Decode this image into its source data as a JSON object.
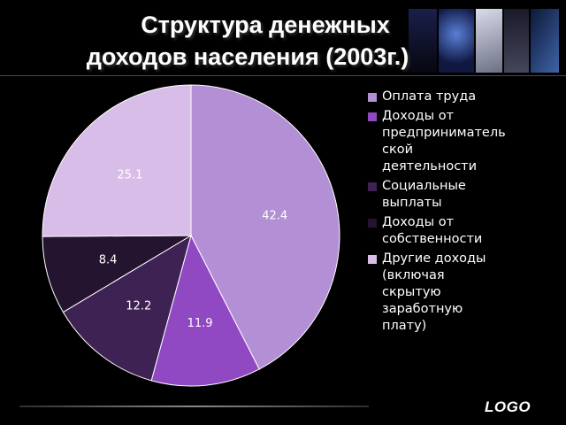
{
  "slide": {
    "title_line1": "Структура денежных",
    "title_line2": "доходов населения (2003г.)",
    "logo": "LOGO"
  },
  "chart_data": {
    "type": "pie",
    "title": "",
    "categories": [
      "Оплата труда",
      "Доходы от предпринимательской деятельности",
      "Социальные выплаты",
      "Доходы от собственности",
      "Другие доходы (включая скрытую заработную плату)"
    ],
    "legend_labels": [
      "Оплата труда",
      "Доходы от\nпредприниматель\nской\nдеятельности",
      "Социальные\nвыплаты",
      "Доходы от\nсобственности",
      "Другие доходы\n(включая\nскрытую\nзаработную\nплату)"
    ],
    "values": [
      42.4,
      11.9,
      12.2,
      8.4,
      25.1
    ],
    "data_labels": [
      "42.4",
      "11.9",
      "12.2",
      "8.4",
      "25.1"
    ],
    "colors": [
      "#b38fd6",
      "#9148c3",
      "#3e2253",
      "#25142f",
      "#d8bde8"
    ],
    "label_colors": [
      "#ffffff",
      "#ffffff",
      "#ffffff",
      "#ffffff",
      "#ffffff"
    ],
    "legend_position": "right",
    "start_angle_deg": 0,
    "direction": "clockwise"
  }
}
